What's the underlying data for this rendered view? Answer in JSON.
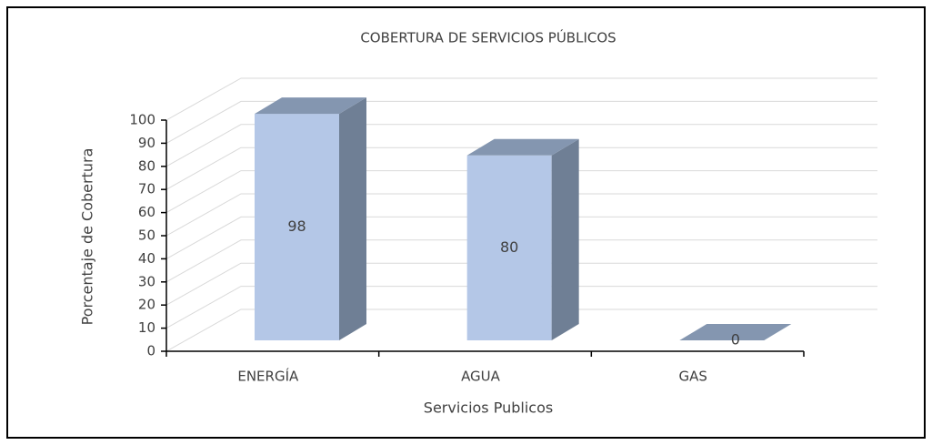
{
  "chart_data": {
    "type": "bar3d",
    "title": "COBERTURA DE SERVICIOS PÚBLICOS",
    "x_label": "Servicios Publicos",
    "y_label": "Porcentaje de Cobertura",
    "categories": [
      "ENERGÍA",
      "AGUA",
      "GAS"
    ],
    "values": [
      98,
      80,
      0
    ],
    "color": "#b4c7e7",
    "ylim": [
      0,
      100
    ],
    "yticks": [
      0,
      10,
      20,
      30,
      40,
      50,
      60,
      70,
      80,
      90,
      100
    ],
    "grid": true
  }
}
